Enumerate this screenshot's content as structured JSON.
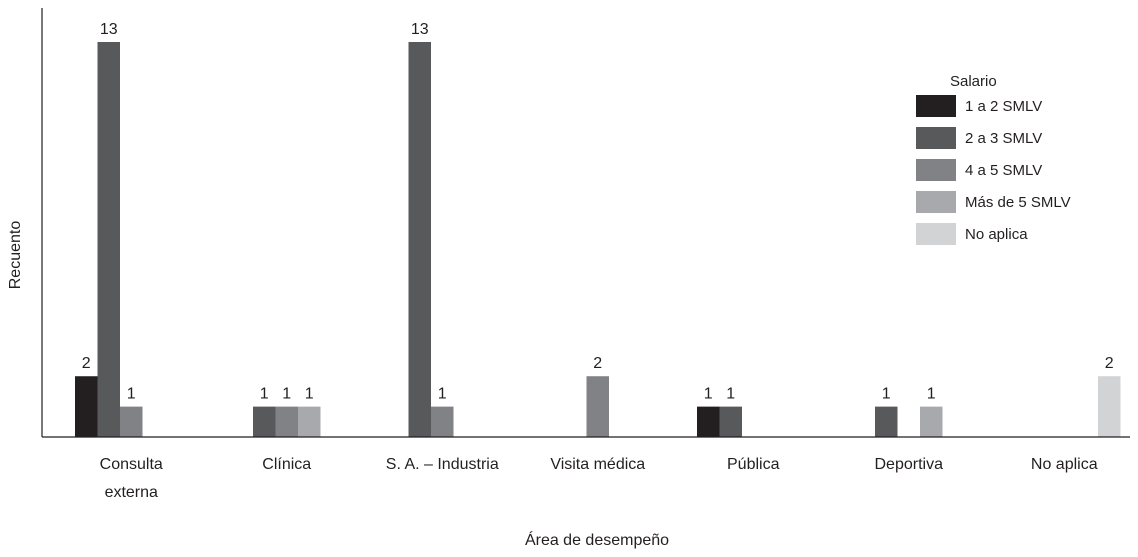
{
  "chart_data": {
    "type": "bar",
    "xlabel": "Área de desempeño",
    "ylabel": "Recuento",
    "ylim": [
      0,
      13.5
    ],
    "grid": false,
    "legend_position": "top-right",
    "legend_title": "Salario",
    "categories": [
      [
        "Consulta",
        "externa"
      ],
      [
        "Clínica"
      ],
      [
        "S. A. – Industria"
      ],
      [
        "Visita médica"
      ],
      [
        "Pública"
      ],
      [
        "Deportiva"
      ],
      [
        "No aplica"
      ]
    ],
    "series": [
      {
        "name": "1 a 2 SMLV",
        "color": "#231f20",
        "values": [
          2,
          null,
          null,
          null,
          1,
          null,
          null
        ]
      },
      {
        "name": "2 a 3 SMLV",
        "color": "#58595b",
        "values": [
          13,
          1,
          13,
          null,
          1,
          1,
          null
        ]
      },
      {
        "name": "4 a 5 SMLV",
        "color": "#808285",
        "values": [
          1,
          1,
          1,
          2,
          null,
          null,
          null
        ]
      },
      {
        "name": "Más de 5 SMLV",
        "color": "#a7a9ac",
        "values": [
          null,
          1,
          null,
          null,
          null,
          1,
          null
        ]
      },
      {
        "name": "No aplica",
        "color": "#d1d3d4",
        "values": [
          null,
          null,
          null,
          null,
          null,
          null,
          2
        ]
      }
    ]
  }
}
